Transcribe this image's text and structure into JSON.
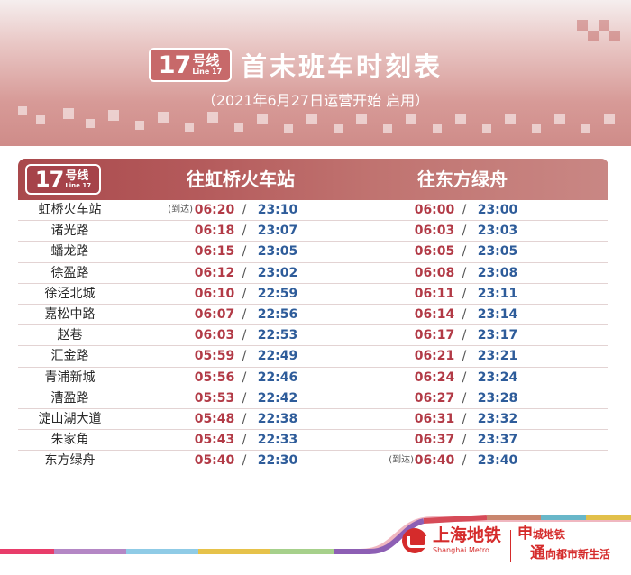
{
  "header": {
    "line_number": "17",
    "line_cn": "号线",
    "line_en": "Line 17",
    "title": "首末班车时刻表",
    "subtitle": "（2021年6月27日运营开始 启用）"
  },
  "table": {
    "direction_a": "往虹桥火车站",
    "direction_b": "往东方绿舟",
    "arrival_note": "(到达)",
    "rows": [
      {
        "station": "虹桥火车站",
        "a_note": "(到达)",
        "a_first": "06:20",
        "a_last": "23:10",
        "b_note": "",
        "b_first": "06:00",
        "b_last": "23:00"
      },
      {
        "station": "诸光路",
        "a_note": "",
        "a_first": "06:18",
        "a_last": "23:07",
        "b_note": "",
        "b_first": "06:03",
        "b_last": "23:03"
      },
      {
        "station": "蟠龙路",
        "a_note": "",
        "a_first": "06:15",
        "a_last": "23:05",
        "b_note": "",
        "b_first": "06:05",
        "b_last": "23:05"
      },
      {
        "station": "徐盈路",
        "a_note": "",
        "a_first": "06:12",
        "a_last": "23:02",
        "b_note": "",
        "b_first": "06:08",
        "b_last": "23:08"
      },
      {
        "station": "徐泾北城",
        "a_note": "",
        "a_first": "06:10",
        "a_last": "22:59",
        "b_note": "",
        "b_first": "06:11",
        "b_last": "23:11"
      },
      {
        "station": "嘉松中路",
        "a_note": "",
        "a_first": "06:07",
        "a_last": "22:56",
        "b_note": "",
        "b_first": "06:14",
        "b_last": "23:14"
      },
      {
        "station": "赵巷",
        "a_note": "",
        "a_first": "06:03",
        "a_last": "22:53",
        "b_note": "",
        "b_first": "06:17",
        "b_last": "23:17"
      },
      {
        "station": "汇金路",
        "a_note": "",
        "a_first": "05:59",
        "a_last": "22:49",
        "b_note": "",
        "b_first": "06:21",
        "b_last": "23:21"
      },
      {
        "station": "青浦新城",
        "a_note": "",
        "a_first": "05:56",
        "a_last": "22:46",
        "b_note": "",
        "b_first": "06:24",
        "b_last": "23:24"
      },
      {
        "station": "漕盈路",
        "a_note": "",
        "a_first": "05:53",
        "a_last": "22:42",
        "b_note": "",
        "b_first": "06:27",
        "b_last": "23:28"
      },
      {
        "station": "淀山湖大道",
        "a_note": "",
        "a_first": "05:48",
        "a_last": "22:38",
        "b_note": "",
        "b_first": "06:31",
        "b_last": "23:32"
      },
      {
        "station": "朱家角",
        "a_note": "",
        "a_first": "05:43",
        "a_last": "22:33",
        "b_note": "",
        "b_first": "06:37",
        "b_last": "23:37"
      },
      {
        "station": "东方绿舟",
        "a_note": "",
        "a_first": "05:40",
        "a_last": "22:30",
        "b_note": "(到达)",
        "b_first": "06:40",
        "b_last": "23:40"
      }
    ]
  },
  "footer": {
    "logo_cn": "上海地铁",
    "logo_en": "Shanghai Metro",
    "slogan_1_big": "申",
    "slogan_1_rest": "城地铁",
    "slogan_2_big": "通",
    "slogan_2_rest": "向都市新生活"
  },
  "colors": {
    "first_train": "#b23a46",
    "last_train": "#2e5c9a",
    "header_bar": "#b45a5b",
    "metro_red": "#d52b2b"
  }
}
